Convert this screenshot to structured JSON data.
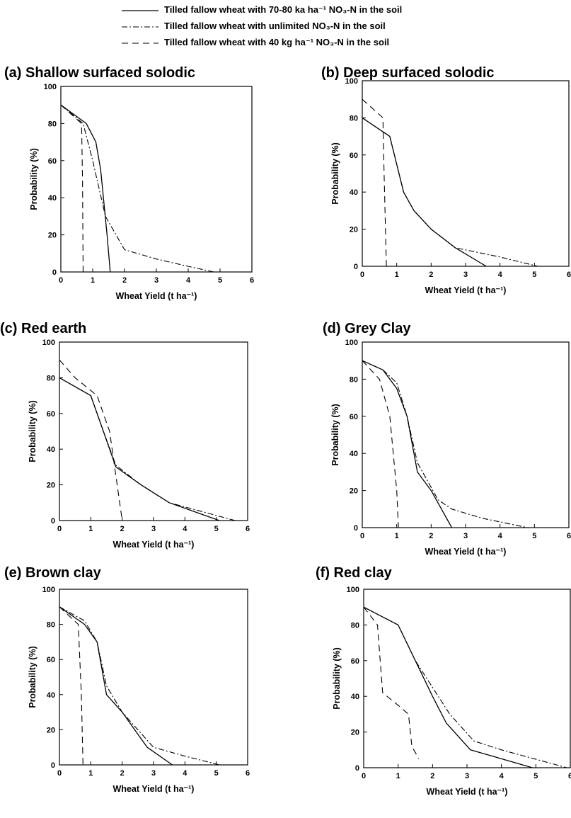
{
  "legend": {
    "items": [
      {
        "label": "Tilled fallow wheat with 70-80 ka ha⁻¹ NO₃-N in the soil",
        "dash": ""
      },
      {
        "label": "Tilled fallow wheat with unlimited NO₃-N in the soil",
        "dash": "8,3,2,3"
      },
      {
        "label": "Tilled fallow wheat with 40 kg ha⁻¹ NO₃-N in the soil",
        "dash": "9,6"
      }
    ]
  },
  "chart_data": [
    {
      "type": "line",
      "title": "(a) Shallow surfaced solodic",
      "xlabel": "Wheat Yield (t ha⁻¹)",
      "ylabel": "Probability (%)",
      "xlim": [
        0,
        6
      ],
      "ylim": [
        0,
        100
      ],
      "xticks": [
        "0",
        "1",
        "2",
        "3",
        "4",
        "5",
        "6"
      ],
      "yticks": [
        "0",
        "20",
        "40",
        "60",
        "80",
        "100"
      ],
      "grid": false,
      "series": [
        {
          "x": [
            0,
            0.8,
            1.1,
            1.25,
            1.45,
            1.55
          ],
          "y": [
            90,
            80,
            70,
            55,
            20,
            0
          ]
        },
        {
          "x": [
            0,
            0.7,
            1.0,
            1.4,
            2.0,
            3.0,
            4.0,
            4.8
          ],
          "y": [
            90,
            80,
            60,
            30,
            12,
            7,
            3,
            0
          ]
        },
        {
          "x": [
            0,
            0.65,
            0.68,
            0.7
          ],
          "y": [
            90,
            80,
            50,
            0
          ]
        }
      ]
    },
    {
      "type": "line",
      "title": "(b) Deep surfaced solodic",
      "xlabel": "Wheat Yield (t ha⁻¹)",
      "ylabel": "Probability (%)",
      "xlim": [
        0,
        6
      ],
      "ylim": [
        0,
        100
      ],
      "xticks": [
        "0",
        "1",
        "2",
        "3",
        "4",
        "5",
        "6"
      ],
      "yticks": [
        "0",
        "20",
        "40",
        "60",
        "80",
        "100"
      ],
      "grid": false,
      "series": [
        {
          "x": [
            0,
            0.8,
            1.2,
            1.5,
            2.0,
            2.7,
            3.6
          ],
          "y": [
            80,
            70,
            40,
            30,
            20,
            10,
            0
          ]
        },
        {
          "x": [
            0,
            0.8,
            1.2,
            1.5,
            2.0,
            2.7,
            4.0,
            5.1
          ],
          "y": [
            80,
            70,
            40,
            30,
            20,
            10,
            5,
            0
          ]
        },
        {
          "x": [
            0,
            0.6,
            0.62,
            0.7
          ],
          "y": [
            90,
            80,
            60,
            0
          ]
        }
      ]
    },
    {
      "type": "line",
      "title": "(c) Red earth",
      "xlabel": "Wheat Yield (t ha⁻¹)",
      "ylabel": "Probability (%)",
      "xlim": [
        0,
        6
      ],
      "ylim": [
        0,
        100
      ],
      "xticks": [
        "0",
        "1",
        "2",
        "3",
        "4",
        "5",
        "6"
      ],
      "yticks": [
        "0",
        "20",
        "40",
        "60",
        "80",
        "100"
      ],
      "grid": false,
      "series": [
        {
          "x": [
            0,
            1.0,
            1.4,
            1.8,
            2.6,
            3.5,
            5.1
          ],
          "y": [
            80,
            70,
            50,
            30,
            20,
            10,
            0
          ]
        },
        {
          "x": [
            0,
            1.0,
            1.4,
            1.8,
            2.6,
            3.5,
            5.6
          ],
          "y": [
            80,
            70,
            50,
            31,
            20,
            10,
            0
          ]
        },
        {
          "x": [
            0,
            0.5,
            1.2,
            1.6,
            1.8,
            2.0
          ],
          "y": [
            90,
            80,
            70,
            50,
            25,
            0
          ]
        }
      ]
    },
    {
      "type": "line",
      "title": "(d) Grey Clay",
      "xlabel": "Wheat Yield (t ha⁻¹)",
      "ylabel": "Probability (%)",
      "xlim": [
        0,
        6
      ],
      "ylim": [
        0,
        100
      ],
      "xticks": [
        "0",
        "1",
        "2",
        "3",
        "4",
        "5",
        "6"
      ],
      "yticks": [
        "0",
        "20",
        "40",
        "60",
        "80",
        "100"
      ],
      "grid": false,
      "series": [
        {
          "x": [
            0,
            0.6,
            1.0,
            1.3,
            1.6,
            2.0,
            2.6
          ],
          "y": [
            90,
            85,
            75,
            60,
            30,
            20,
            0
          ]
        },
        {
          "x": [
            0,
            0.6,
            1.0,
            1.3,
            1.6,
            2.2,
            2.6,
            3.5,
            4.8
          ],
          "y": [
            90,
            85,
            78,
            60,
            35,
            15,
            10,
            5,
            0
          ]
        },
        {
          "x": [
            0,
            0.5,
            0.8,
            1.0,
            1.05
          ],
          "y": [
            90,
            80,
            60,
            20,
            0
          ]
        }
      ]
    },
    {
      "type": "line",
      "title": "(e) Brown clay",
      "xlabel": "Wheat Yield (t ha⁻¹)",
      "ylabel": "Probability (%)",
      "xlim": [
        0,
        6
      ],
      "ylim": [
        0,
        100
      ],
      "xticks": [
        "0",
        "1",
        "2",
        "3",
        "4",
        "5",
        "6"
      ],
      "yticks": [
        "0",
        "20",
        "40",
        "60",
        "80",
        "100"
      ],
      "grid": false,
      "series": [
        {
          "x": [
            0,
            0.8,
            1.2,
            1.5,
            2.0,
            2.8,
            3.6
          ],
          "y": [
            90,
            80,
            70,
            40,
            30,
            10,
            0
          ]
        },
        {
          "x": [
            0,
            0.8,
            1.2,
            1.5,
            2.0,
            3.0,
            4.0,
            5.1
          ],
          "y": [
            90,
            82,
            70,
            45,
            30,
            10,
            5,
            0
          ]
        },
        {
          "x": [
            0,
            0.6,
            0.7,
            0.75
          ],
          "y": [
            90,
            80,
            40,
            0
          ]
        }
      ]
    },
    {
      "type": "line",
      "title": "(f) Red clay",
      "xlabel": "Wheat Yield (t ha⁻¹)",
      "ylabel": "Probability (%)",
      "xlim": [
        0,
        6
      ],
      "ylim": [
        0,
        100
      ],
      "xticks": [
        "0",
        "1",
        "2",
        "3",
        "4",
        "5",
        "6"
      ],
      "yticks": [
        "0",
        "20",
        "40",
        "60",
        "80",
        "100"
      ],
      "grid": false,
      "series": [
        {
          "x": [
            0,
            1.0,
            1.5,
            2.0,
            2.4,
            3.1,
            4.9
          ],
          "y": [
            90,
            80,
            60,
            40,
            25,
            10,
            0
          ]
        },
        {
          "x": [
            0,
            1.0,
            1.5,
            2.0,
            2.5,
            3.2,
            4.0,
            5.9
          ],
          "y": [
            90,
            80,
            60,
            45,
            30,
            15,
            10,
            0
          ]
        },
        {
          "x": [
            0,
            0.4,
            0.55,
            1.0,
            1.3,
            1.4,
            1.6
          ],
          "y": [
            90,
            80,
            42,
            35,
            30,
            12,
            5
          ]
        }
      ]
    }
  ]
}
